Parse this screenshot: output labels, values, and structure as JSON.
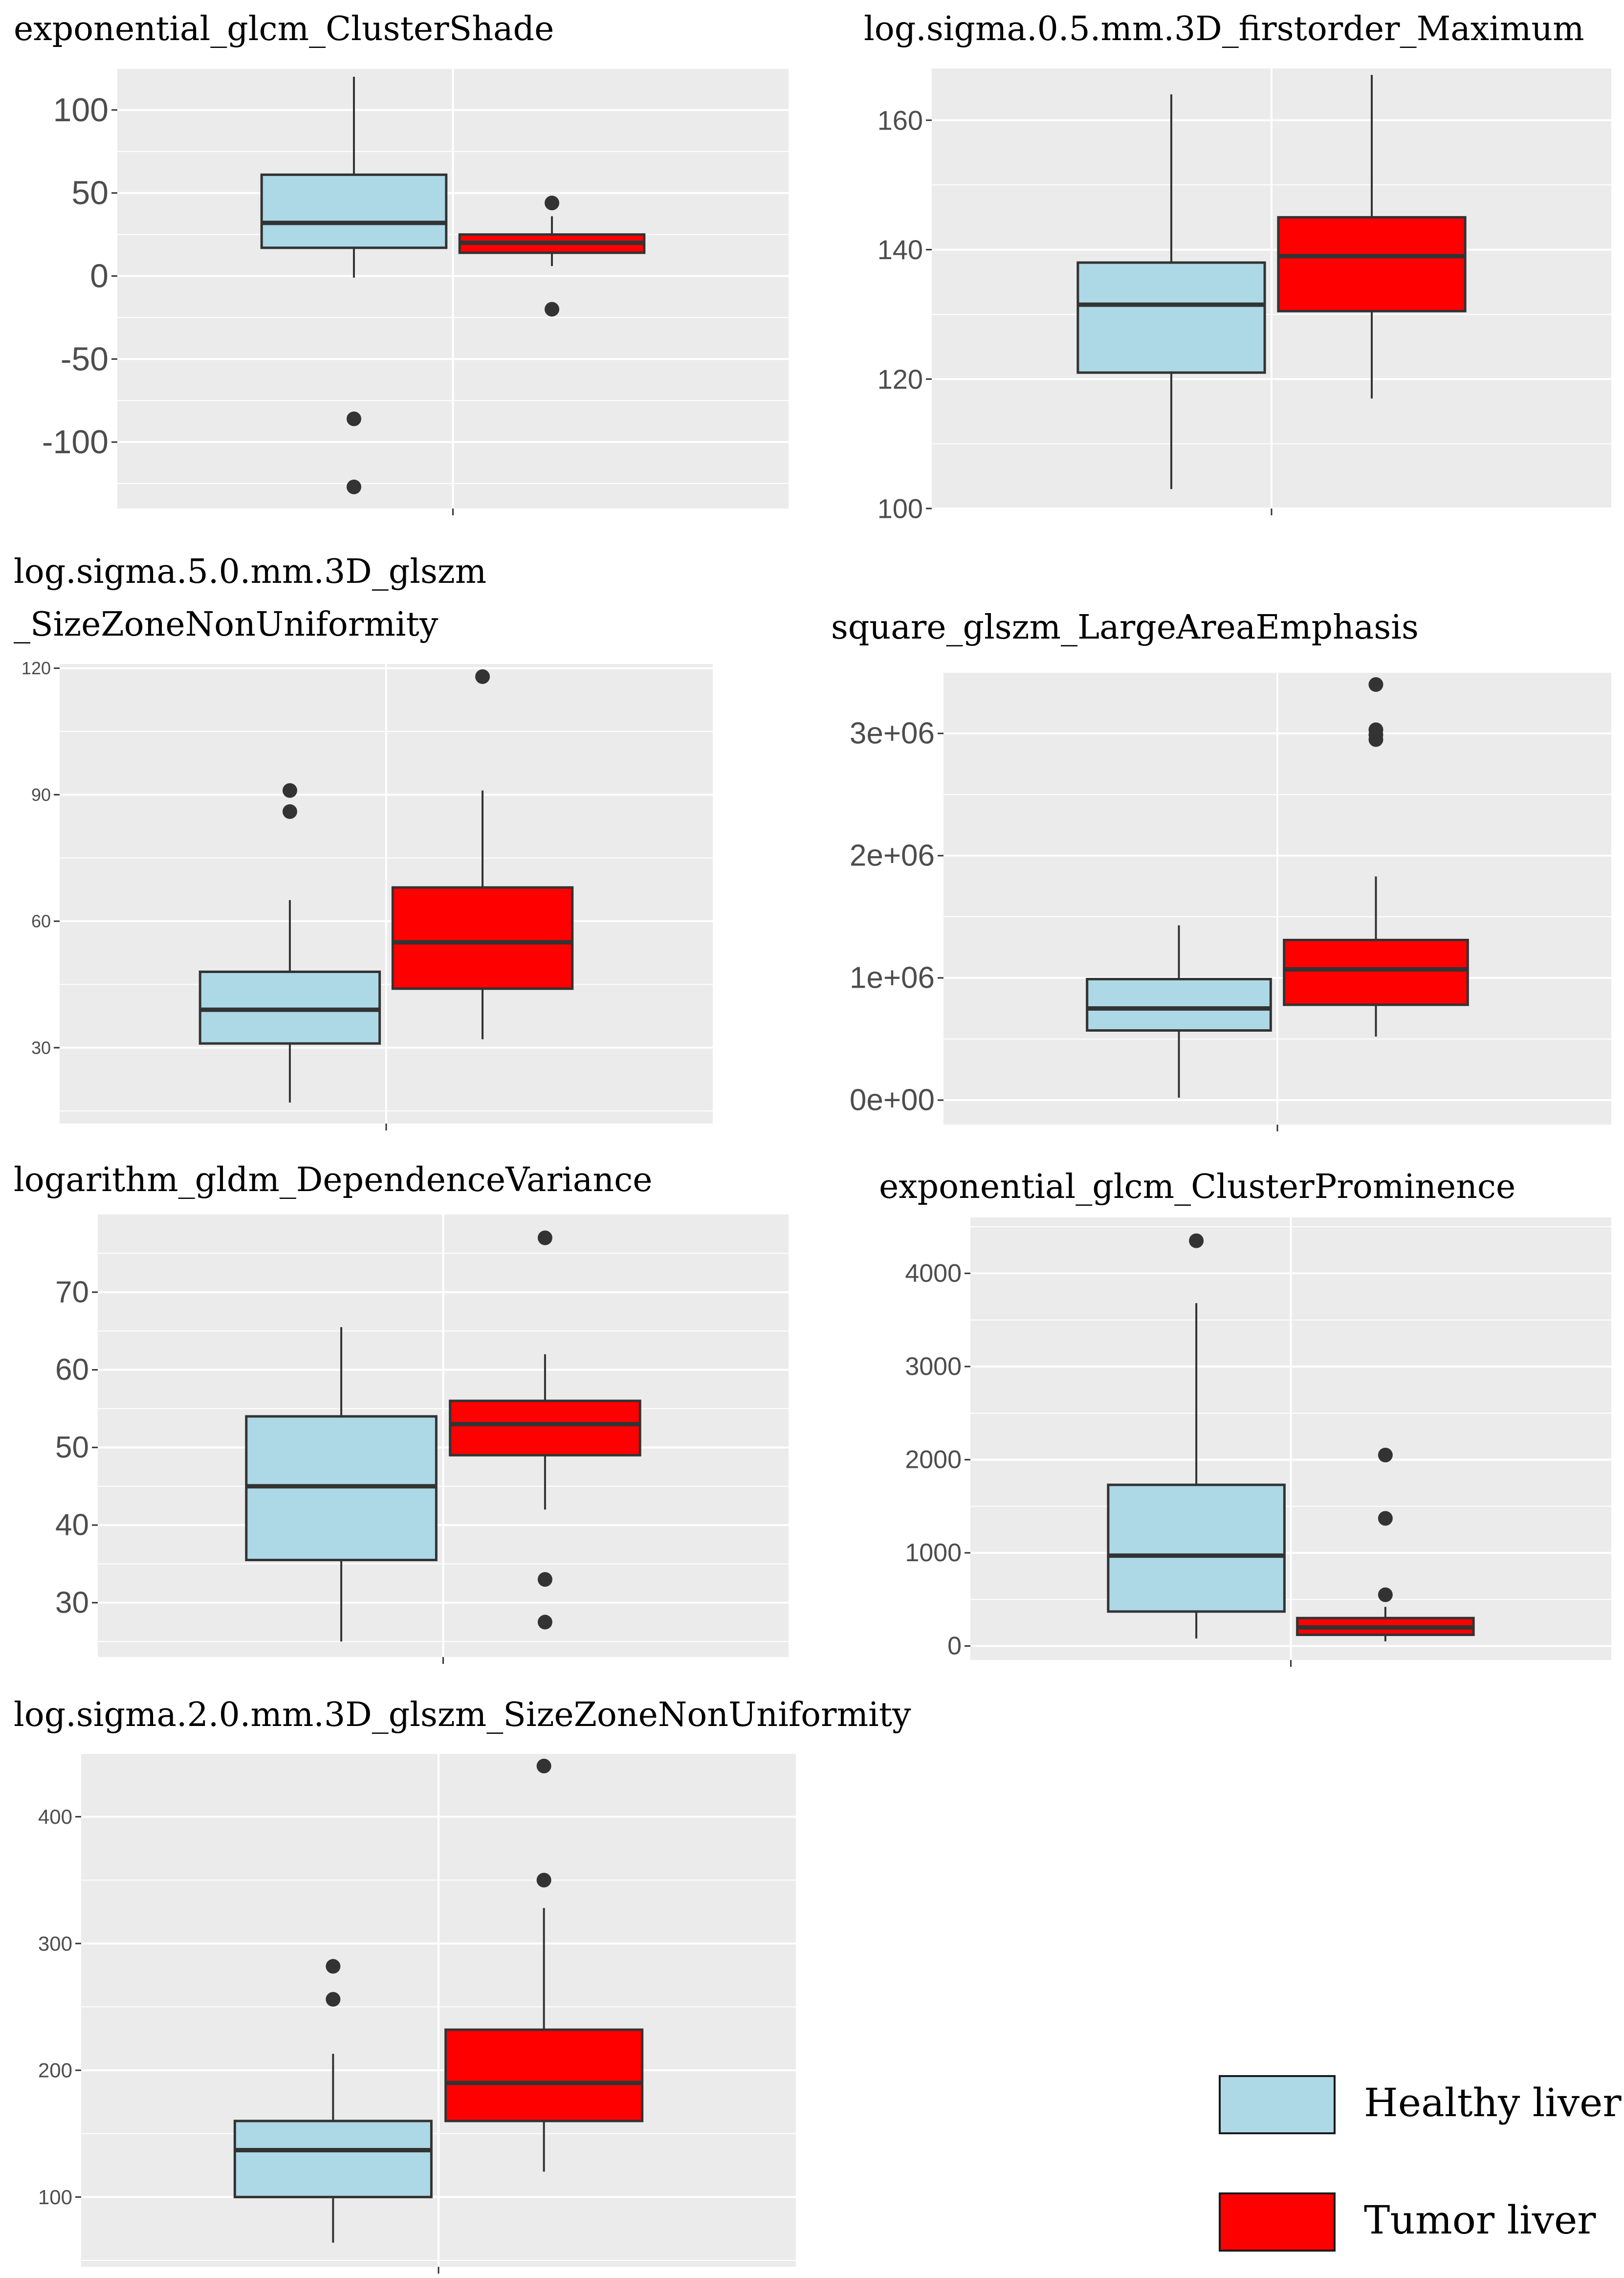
{
  "colors": {
    "healthy": "#add8e6",
    "tumor": "#ff0000",
    "panel_bg": "#ebebeb",
    "grid": "#ffffff",
    "box_line": "#333333",
    "tick_text": "#4d4d4d"
  },
  "legend": {
    "items": [
      {
        "label": "Healthy liver",
        "color": "#add8e6"
      },
      {
        "label": "Tumor liver",
        "color": "#ff0000"
      }
    ]
  },
  "chart_data": [
    {
      "type": "boxplot",
      "title_lines": [
        "exponential_glcm_ClusterShade"
      ],
      "ylim": [
        -140,
        125
      ],
      "yticks": [
        -100,
        -50,
        0,
        50,
        100
      ],
      "ytick_labels": [
        "-100",
        "-50",
        "0",
        "50",
        "100"
      ],
      "series": [
        {
          "name": "Healthy liver",
          "q1": 17,
          "median": 32,
          "q3": 61,
          "whisker_low": -1,
          "whisker_high": 120,
          "outliers": [
            -86,
            -127
          ]
        },
        {
          "name": "Tumor liver",
          "q1": 14,
          "median": 20,
          "q3": 25,
          "whisker_low": 6,
          "whisker_high": 36,
          "outliers": [
            44,
            -20
          ]
        }
      ]
    },
    {
      "type": "boxplot",
      "title_lines": [
        "log.sigma.0.5.mm.3D_firstorder_Maximum"
      ],
      "ylim": [
        100,
        168
      ],
      "yticks": [
        100,
        120,
        140,
        160
      ],
      "ytick_labels": [
        "100",
        "120",
        "140",
        "160"
      ],
      "series": [
        {
          "name": "Healthy liver",
          "q1": 121,
          "median": 131.5,
          "q3": 138,
          "whisker_low": 103,
          "whisker_high": 164,
          "outliers": []
        },
        {
          "name": "Tumor liver",
          "q1": 130.5,
          "median": 139,
          "q3": 145,
          "whisker_low": 117,
          "whisker_high": 167,
          "outliers": []
        }
      ]
    },
    {
      "type": "boxplot",
      "title_lines": [
        "log.sigma.5.0.mm.3D_glszm",
        "_SizeZoneNonUniformity"
      ],
      "ylim": [
        12,
        121
      ],
      "yticks": [
        30,
        60,
        90,
        120
      ],
      "ytick_labels": [
        "30",
        "60",
        "90",
        "120"
      ],
      "series": [
        {
          "name": "Healthy liver",
          "q1": 31,
          "median": 39,
          "q3": 48,
          "whisker_low": 17,
          "whisker_high": 65,
          "outliers": [
            86,
            91
          ]
        },
        {
          "name": "Tumor liver",
          "q1": 44,
          "median": 55,
          "q3": 68,
          "whisker_low": 32,
          "whisker_high": 91,
          "outliers": [
            118
          ]
        }
      ]
    },
    {
      "type": "boxplot",
      "title_lines": [
        "square_glszm_LargeAreaEmphasis"
      ],
      "ylim": [
        -200000,
        3500000
      ],
      "yticks": [
        0,
        1000000,
        2000000,
        3000000
      ],
      "ytick_labels": [
        "0e+00",
        "1e+06",
        "2e+06",
        "3e+06"
      ],
      "series": [
        {
          "name": "Healthy liver",
          "q1": 570000,
          "median": 750000,
          "q3": 990000,
          "whisker_low": 20000,
          "whisker_high": 1430000,
          "outliers": []
        },
        {
          "name": "Tumor liver",
          "q1": 780000,
          "median": 1070000,
          "q3": 1310000,
          "whisker_low": 520000,
          "whisker_high": 1830000,
          "outliers": [
            2950000,
            2990000,
            3030000,
            3400000
          ]
        }
      ]
    },
    {
      "type": "boxplot",
      "title_lines": [
        "logarithm_gldm_DependenceVariance"
      ],
      "ylim": [
        23,
        80
      ],
      "yticks": [
        30,
        40,
        50,
        60,
        70
      ],
      "ytick_labels": [
        "30",
        "40",
        "50",
        "60",
        "70"
      ],
      "series": [
        {
          "name": "Healthy liver",
          "q1": 35.5,
          "median": 45,
          "q3": 54,
          "whisker_low": 25,
          "whisker_high": 65.5,
          "outliers": []
        },
        {
          "name": "Tumor liver",
          "q1": 49,
          "median": 53,
          "q3": 56,
          "whisker_low": 42,
          "whisker_high": 62,
          "outliers": [
            77,
            33,
            27.5
          ]
        }
      ]
    },
    {
      "type": "boxplot",
      "title_lines": [
        "exponential_glcm_ClusterProminence"
      ],
      "ylim": [
        -150,
        4600
      ],
      "yticks": [
        0,
        1000,
        2000,
        3000,
        4000
      ],
      "ytick_labels": [
        "0",
        "1000",
        "2000",
        "3000",
        "4000"
      ],
      "series": [
        {
          "name": "Healthy liver",
          "q1": 370,
          "median": 970,
          "q3": 1730,
          "whisker_low": 80,
          "whisker_high": 3680,
          "outliers": [
            4350
          ]
        },
        {
          "name": "Tumor liver",
          "q1": 120,
          "median": 200,
          "q3": 300,
          "whisker_low": 50,
          "whisker_high": 420,
          "outliers": [
            550,
            1370,
            2050
          ]
        }
      ]
    },
    {
      "type": "boxplot",
      "title_lines": [
        "log.sigma.2.0.mm.3D_glszm_SizeZoneNonUniformity"
      ],
      "ylim": [
        45,
        450
      ],
      "yticks": [
        100,
        200,
        300,
        400
      ],
      "ytick_labels": [
        "100",
        "200",
        "300",
        "400"
      ],
      "series": [
        {
          "name": "Healthy liver",
          "q1": 100,
          "median": 137,
          "q3": 160,
          "whisker_low": 64,
          "whisker_high": 213,
          "outliers": [
            256,
            282
          ]
        },
        {
          "name": "Tumor liver",
          "q1": 160,
          "median": 190,
          "q3": 232,
          "whisker_low": 120,
          "whisker_high": 328,
          "outliers": [
            350,
            440
          ]
        }
      ]
    }
  ]
}
